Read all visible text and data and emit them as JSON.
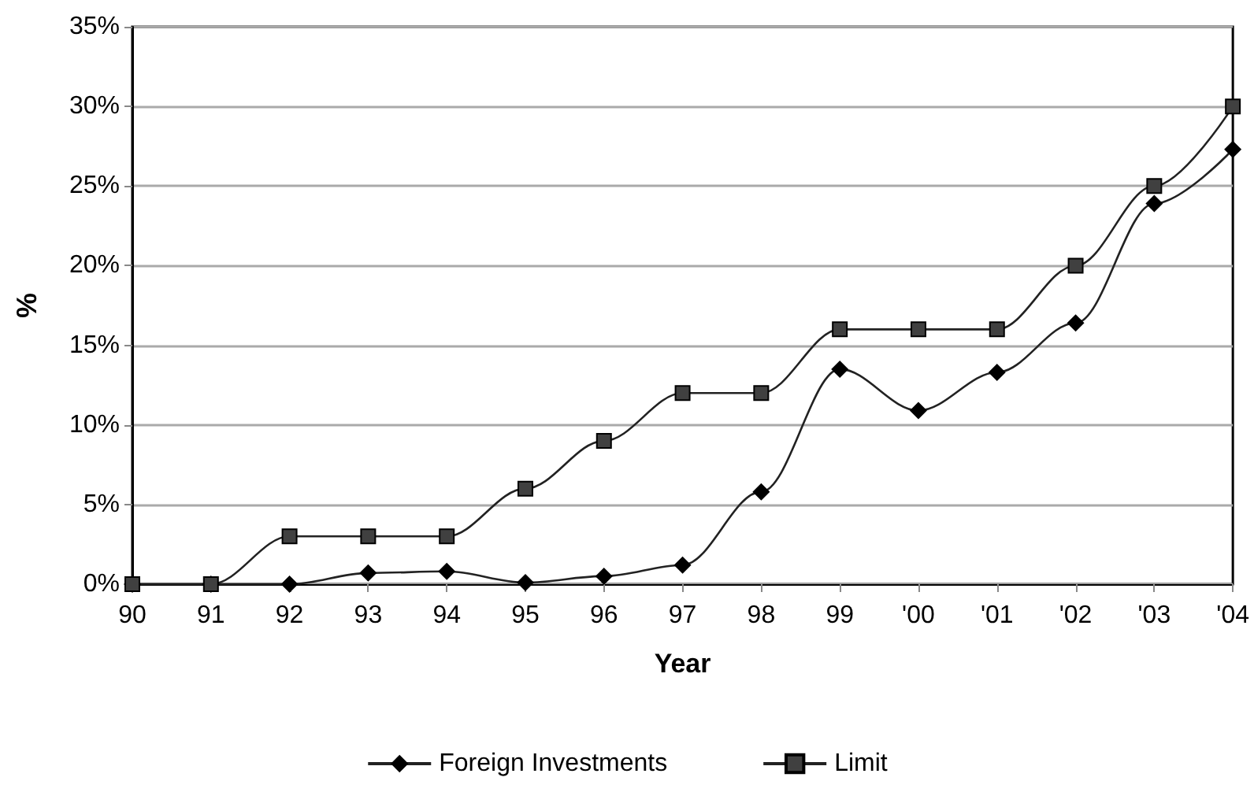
{
  "chart_data": {
    "type": "line",
    "xlabel": "Year",
    "ylabel": "%",
    "categories": [
      "90",
      "91",
      "92",
      "93",
      "94",
      "95",
      "96",
      "97",
      "98",
      "99",
      "'00",
      "'01",
      "'02",
      "'03",
      "'04"
    ],
    "series": [
      {
        "name": "Foreign Investments",
        "color": "#000000",
        "marker": "diamond",
        "values": [
          0,
          0,
          0,
          0.7,
          0.8,
          0.1,
          0.5,
          1.2,
          5.8,
          13.5,
          10.9,
          13.3,
          16.4,
          23.9,
          27.3
        ]
      },
      {
        "name": "Limit",
        "color": "#404040",
        "marker": "square",
        "values": [
          0,
          0,
          3,
          3,
          3,
          6,
          9,
          12,
          12,
          16,
          16,
          16,
          20,
          25,
          30
        ]
      }
    ],
    "ylim": [
      0,
      35
    ],
    "yticks": [
      {
        "value": 0,
        "label": "0%"
      },
      {
        "value": 5,
        "label": "5%"
      },
      {
        "value": 10,
        "label": "10%"
      },
      {
        "value": 15,
        "label": "15%"
      },
      {
        "value": 20,
        "label": "20%"
      },
      {
        "value": 25,
        "label": "25%"
      },
      {
        "value": 30,
        "label": "30%"
      },
      {
        "value": 35,
        "label": "35%"
      }
    ],
    "grid": "y",
    "legend": "bottom",
    "line_style": "solid"
  }
}
